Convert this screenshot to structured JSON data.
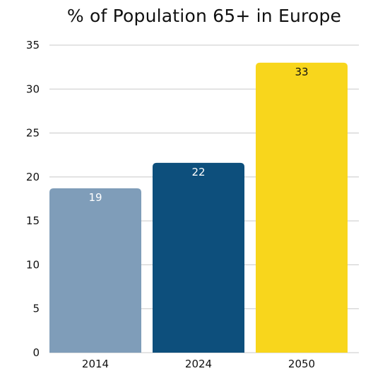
{
  "chart_data": {
    "type": "bar",
    "title": "% of Population 65+ in Europe",
    "categories": [
      "2014",
      "2024",
      "2050"
    ],
    "values": [
      18.7,
      21.6,
      33
    ],
    "data_labels": [
      "19",
      "22",
      "33"
    ],
    "ylim": [
      0,
      35
    ],
    "yticks": [
      0,
      5,
      10,
      15,
      20,
      25,
      30,
      35
    ],
    "grid": true,
    "colors": [
      "#7f9db9",
      "#0d4f7c",
      "#f8d61c"
    ],
    "label_colors": [
      "#ffffff",
      "#ffffff",
      "#111111"
    ]
  }
}
